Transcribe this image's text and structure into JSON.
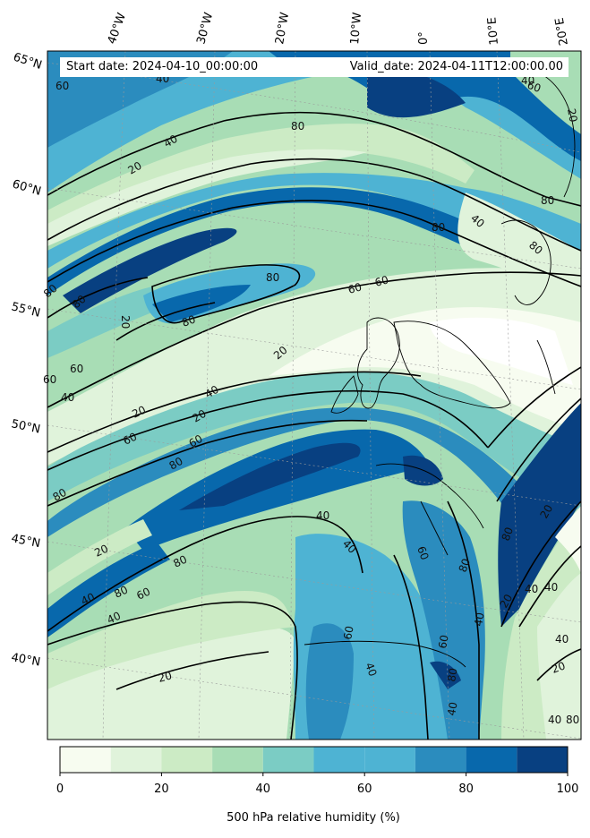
{
  "header": {
    "start_date": "Start date: 2024-04-10_00:00:00",
    "valid_date": "Valid_date: 2024-04-11T12:00:00.00"
  },
  "map": {
    "longitude_labels": [
      "40°W",
      "30°W",
      "20°W",
      "10°W",
      "0°",
      "10°E",
      "20°E"
    ],
    "latitude_labels": [
      "65°N",
      "60°N",
      "55°N",
      "50°N",
      "45°N",
      "40°N"
    ],
    "contour_labels": [
      "20",
      "40",
      "60",
      "80"
    ]
  },
  "colorbar": {
    "label": "500 hPa relative humidity (%)",
    "tick_labels": [
      "0",
      "20",
      "40",
      "60",
      "80",
      "100"
    ],
    "ticks": [
      0,
      20,
      40,
      60,
      80,
      100
    ],
    "levels": [
      0,
      10,
      20,
      30,
      40,
      50,
      60,
      70,
      80,
      90,
      100
    ],
    "colors": [
      "#f7fcf0",
      "#e0f3db",
      "#ccebc5",
      "#a8ddb5",
      "#7bccc4",
      "#4eb3d3",
      "#4eb3d3",
      "#2b8cbe",
      "#0868ac",
      "#084081"
    ],
    "range": [
      0,
      100
    ]
  }
}
